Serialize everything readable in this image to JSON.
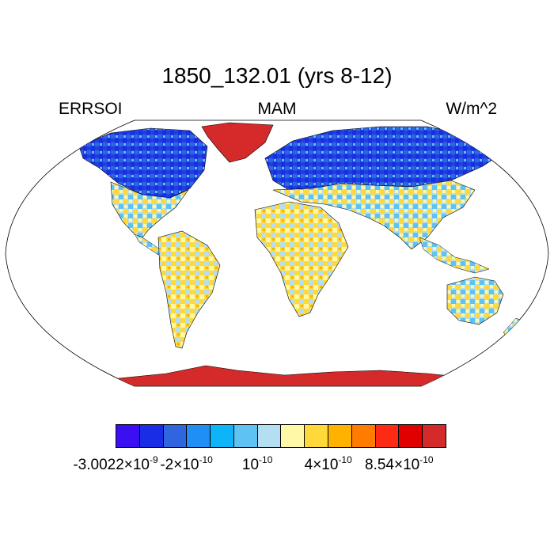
{
  "title": "1850_132.01 (yrs 8-12)",
  "left_label": "ERRSOI",
  "center_label": "MAM",
  "right_label": "W/m^2",
  "colorbar": {
    "colors": [
      "#3b0ff2",
      "#1a2de6",
      "#2f66e0",
      "#1f8ff5",
      "#0db4f7",
      "#5ec3f2",
      "#b4dff2",
      "#fff8a6",
      "#ffd93a",
      "#ffb300",
      "#ff7c00",
      "#ff2a14",
      "#e00000",
      "#d42a2a"
    ],
    "labels": [
      {
        "base": "-3.0022×10",
        "exp": "-9"
      },
      {
        "base": "-2×10",
        "exp": "-10"
      },
      {
        "base": "10",
        "exp": "-10"
      },
      {
        "base": "4×10",
        "exp": "-10"
      },
      {
        "base": "8.54×10",
        "exp": "-10"
      }
    ]
  }
}
